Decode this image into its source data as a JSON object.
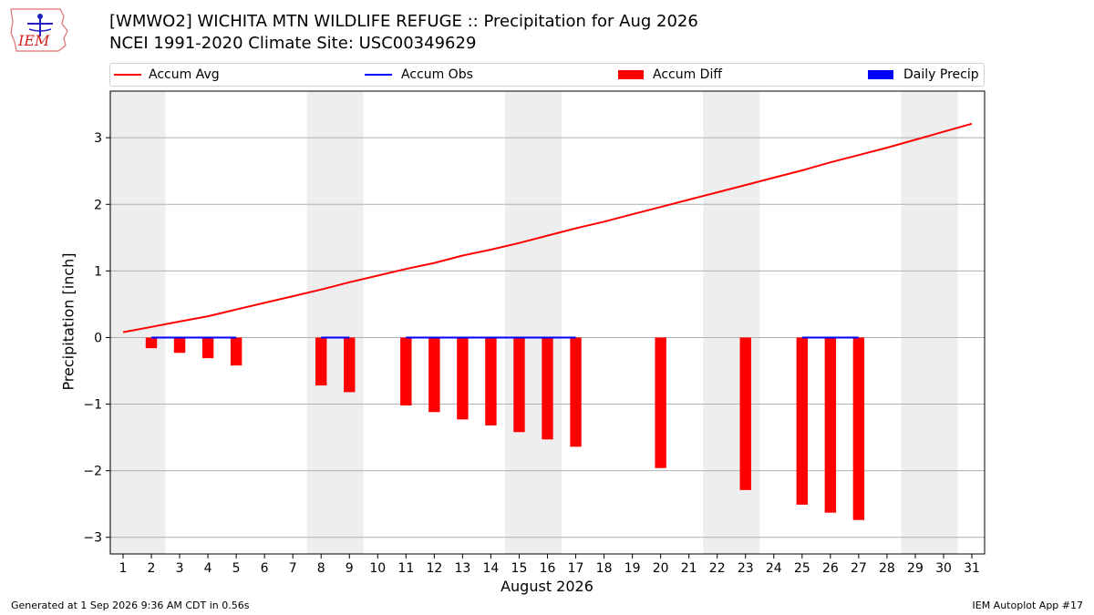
{
  "header": {
    "title_line1": "[WMWO2] WICHITA MTN WILDLIFE REFUGE :: Precipitation for Aug 2026",
    "title_line2": "NCEI 1991-2020 Climate Site: USC00349629",
    "logo_text": "IEM"
  },
  "legend": {
    "items": [
      {
        "label": "Accum Avg",
        "color": "#ff0000",
        "kind": "line"
      },
      {
        "label": "Accum Obs",
        "color": "#0000ff",
        "kind": "line"
      },
      {
        "label": "Accum Diff",
        "color": "#ff0000",
        "kind": "box"
      },
      {
        "label": "Daily Precip",
        "color": "#0000ff",
        "kind": "box"
      }
    ]
  },
  "footer": {
    "left": "Generated at 1 Sep 2026 9:36 AM CDT in 0.56s",
    "right": "IEM Autoplot App #17"
  },
  "chart_data": {
    "type": "line",
    "xlabel": "August 2026",
    "ylabel": "Precipitation [inch]",
    "ylim": [
      -3.25,
      3.7
    ],
    "yticks": [
      -3,
      -2,
      -1,
      0,
      1,
      2,
      3
    ],
    "ytick_labels": [
      "−3",
      "−2",
      "−1",
      "0",
      "1",
      "2",
      "3"
    ],
    "xlim": [
      0.55,
      31.45
    ],
    "x": [
      1,
      2,
      3,
      4,
      5,
      6,
      7,
      8,
      9,
      10,
      11,
      12,
      13,
      14,
      15,
      16,
      17,
      18,
      19,
      20,
      21,
      22,
      23,
      24,
      25,
      26,
      27,
      28,
      29,
      30,
      31
    ],
    "grid": true,
    "weekend_shading": [
      [
        0.5,
        2.5
      ],
      [
        7.5,
        9.5
      ],
      [
        14.5,
        16.5
      ],
      [
        21.5,
        23.5
      ],
      [
        28.5,
        30.5
      ]
    ],
    "series": [
      {
        "name": "Accum Avg",
        "type": "line",
        "color": "#ff0000",
        "x": [
          1,
          2,
          3,
          4,
          5,
          6,
          7,
          8,
          9,
          10,
          11,
          12,
          13,
          14,
          15,
          16,
          17,
          18,
          19,
          20,
          21,
          22,
          23,
          24,
          25,
          26,
          27,
          28,
          29,
          30,
          31
        ],
        "values": [
          0.08,
          0.16,
          0.24,
          0.32,
          0.42,
          0.52,
          0.62,
          0.72,
          0.83,
          0.93,
          1.03,
          1.12,
          1.23,
          1.32,
          1.42,
          1.53,
          1.64,
          1.74,
          1.85,
          1.96,
          2.07,
          2.18,
          2.29,
          2.4,
          2.51,
          2.63,
          2.74,
          2.85,
          2.97,
          3.09,
          3.21
        ]
      },
      {
        "name": "Accum Obs",
        "type": "line",
        "color": "#0000ff",
        "segments": [
          [
            2,
            5
          ],
          [
            8,
            9
          ],
          [
            11,
            17
          ],
          [
            25,
            27
          ]
        ],
        "value": 0.0
      },
      {
        "name": "Accum Diff",
        "type": "bar",
        "color": "#ff0000",
        "x": [
          2,
          3,
          4,
          5,
          8,
          9,
          11,
          12,
          13,
          14,
          15,
          16,
          17,
          20,
          23,
          25,
          26,
          27
        ],
        "values": [
          -0.16,
          -0.23,
          -0.31,
          -0.42,
          -0.72,
          -0.82,
          -1.02,
          -1.12,
          -1.23,
          -1.32,
          -1.42,
          -1.53,
          -1.64,
          -1.96,
          -2.29,
          -2.51,
          -2.63,
          -2.74
        ]
      },
      {
        "name": "Daily Precip",
        "type": "bar",
        "color": "#0000ff",
        "x": [],
        "values": []
      }
    ]
  }
}
